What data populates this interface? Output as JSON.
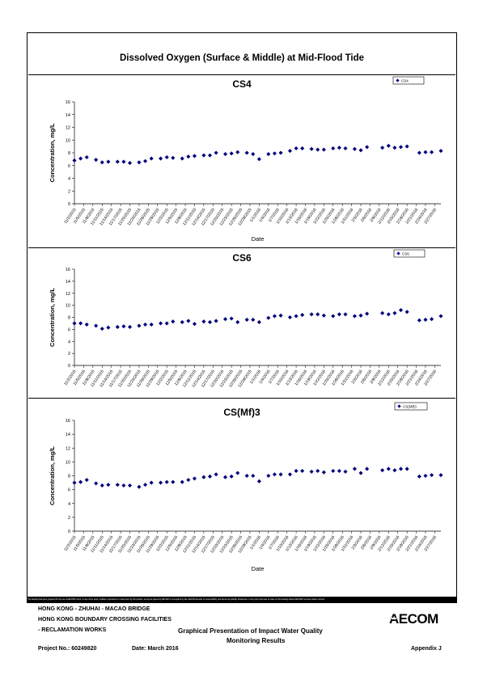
{
  "page": {
    "title": "Dissolved Oxygen (Surface & Middle) at Mid-Flood Tide"
  },
  "chart_data": [
    {
      "type": "scatter",
      "title": "CS4",
      "xlabel": "Date",
      "ylabel": "Concentration, mg/L",
      "legend": "CS4",
      "legend_position": "top-right",
      "ylim": [
        0,
        16
      ],
      "yticks": [
        0,
        2,
        4,
        6,
        8,
        10,
        12,
        14,
        16
      ],
      "xlim": [
        "11/2/2015",
        "2/29/2016"
      ],
      "xticks": [
        "11/2/2015",
        "11/5/2015",
        "11/8/2015",
        "11/11/2015",
        "11/14/2015",
        "11/17/2015",
        "11/20/2015",
        "11/23/2015",
        "11/26/2015",
        "11/29/2015",
        "12/2/2015",
        "12/5/2015",
        "12/8/2015",
        "12/11/2015",
        "12/14/2015",
        "12/17/2015",
        "12/20/2015",
        "12/23/2015",
        "12/26/2015",
        "12/29/2015",
        "1/1/2016",
        "1/4/2016",
        "1/7/2016",
        "1/10/2016",
        "1/13/2016",
        "1/16/2016",
        "1/19/2016",
        "1/22/2016",
        "1/25/2016",
        "1/28/2016",
        "1/31/2016",
        "2/3/2016",
        "2/6/2016",
        "2/9/2016",
        "2/12/2016",
        "2/15/2016",
        "2/18/2016",
        "2/21/2016",
        "2/24/2016",
        "2/27/2016"
      ],
      "marker_color": "#00007a",
      "points": [
        [
          "11/2/2015",
          6.8
        ],
        [
          "11/4/2015",
          7.1
        ],
        [
          "11/6/2015",
          7.3
        ],
        [
          "11/9/2015",
          6.9
        ],
        [
          "11/11/2015",
          6.5
        ],
        [
          "11/13/2015",
          6.6
        ],
        [
          "11/16/2015",
          6.6
        ],
        [
          "11/18/2015",
          6.6
        ],
        [
          "11/20/2015",
          6.4
        ],
        [
          "11/23/2015",
          6.5
        ],
        [
          "11/25/2015",
          6.7
        ],
        [
          "11/27/2015",
          7.1
        ],
        [
          "11/30/2015",
          7.1
        ],
        [
          "12/2/2015",
          7.3
        ],
        [
          "12/4/2015",
          7.2
        ],
        [
          "12/7/2015",
          7.1
        ],
        [
          "12/9/2015",
          7.4
        ],
        [
          "12/11/2015",
          7.5
        ],
        [
          "12/14/2015",
          7.6
        ],
        [
          "12/16/2015",
          7.6
        ],
        [
          "12/18/2015",
          8.0
        ],
        [
          "12/21/2015",
          7.8
        ],
        [
          "12/23/2015",
          7.9
        ],
        [
          "12/25/2015",
          8.1
        ],
        [
          "12/28/2015",
          8.0
        ],
        [
          "12/30/2015",
          7.8
        ],
        [
          "1/1/2016",
          7.0
        ],
        [
          "1/4/2016",
          7.8
        ],
        [
          "1/6/2016",
          7.9
        ],
        [
          "1/8/2016",
          8.0
        ],
        [
          "1/11/2016",
          8.3
        ],
        [
          "1/13/2016",
          8.7
        ],
        [
          "1/15/2016",
          8.7
        ],
        [
          "1/18/2016",
          8.6
        ],
        [
          "1/20/2016",
          8.5
        ],
        [
          "1/22/2016",
          8.5
        ],
        [
          "1/25/2016",
          8.7
        ],
        [
          "1/27/2016",
          8.8
        ],
        [
          "1/29/2016",
          8.7
        ],
        [
          "2/1/2016",
          8.6
        ],
        [
          "2/3/2016",
          8.4
        ],
        [
          "2/5/2016",
          8.9
        ],
        [
          "2/10/2016",
          8.8
        ],
        [
          "2/12/2016",
          9.1
        ],
        [
          "2/14/2016",
          8.8
        ],
        [
          "2/16/2016",
          8.9
        ],
        [
          "2/18/2016",
          9.0
        ],
        [
          "2/22/2016",
          8.0
        ],
        [
          "2/24/2016",
          8.1
        ],
        [
          "2/26/2016",
          8.1
        ],
        [
          "2/29/2016",
          8.3
        ]
      ]
    },
    {
      "type": "scatter",
      "title": "CS6",
      "xlabel": "",
      "ylabel": "Concentration, mg/L",
      "legend": "CS6",
      "legend_position": "top-right",
      "ylim": [
        0,
        16
      ],
      "yticks": [
        0,
        2,
        4,
        6,
        8,
        10,
        12,
        14,
        16
      ],
      "xlim": [
        "11/2/2015",
        "2/29/2016"
      ],
      "xticks": [
        "11/2/2015",
        "11/5/2015",
        "11/8/2015",
        "11/11/2015",
        "11/14/2015",
        "11/17/2015",
        "11/20/2015",
        "11/23/2015",
        "11/26/2015",
        "11/29/2015",
        "12/2/2015",
        "12/5/2015",
        "12/8/2015",
        "12/11/2015",
        "12/14/2015",
        "12/17/2015",
        "12/20/2015",
        "12/23/2015",
        "12/26/2015",
        "12/29/2015",
        "1/1/2016",
        "1/4/2016",
        "1/7/2016",
        "1/10/2016",
        "1/13/2016",
        "1/16/2016",
        "1/19/2016",
        "1/22/2016",
        "1/25/2016",
        "1/28/2016",
        "1/31/2016",
        "2/3/2016",
        "2/6/2016",
        "2/9/2016",
        "2/12/2016",
        "2/15/2016",
        "2/18/2016",
        "2/21/2016",
        "2/24/2016",
        "2/27/2016"
      ],
      "marker_color": "#00007a",
      "points": [
        [
          "11/2/2015",
          7.0
        ],
        [
          "11/4/2015",
          7.0
        ],
        [
          "11/6/2015",
          6.8
        ],
        [
          "11/9/2015",
          6.6
        ],
        [
          "11/11/2015",
          6.1
        ],
        [
          "11/13/2015",
          6.3
        ],
        [
          "11/16/2015",
          6.4
        ],
        [
          "11/18/2015",
          6.5
        ],
        [
          "11/20/2015",
          6.4
        ],
        [
          "11/23/2015",
          6.6
        ],
        [
          "11/25/2015",
          6.8
        ],
        [
          "11/27/2015",
          6.8
        ],
        [
          "11/30/2015",
          7.0
        ],
        [
          "12/2/2015",
          7.0
        ],
        [
          "12/4/2015",
          7.3
        ],
        [
          "12/7/2015",
          7.2
        ],
        [
          "12/9/2015",
          7.4
        ],
        [
          "12/11/2015",
          6.9
        ],
        [
          "12/14/2015",
          7.3
        ],
        [
          "12/16/2015",
          7.2
        ],
        [
          "12/18/2015",
          7.4
        ],
        [
          "12/21/2015",
          7.7
        ],
        [
          "12/23/2015",
          7.8
        ],
        [
          "12/25/2015",
          7.2
        ],
        [
          "12/28/2015",
          7.6
        ],
        [
          "12/30/2015",
          7.6
        ],
        [
          "1/1/2016",
          7.2
        ],
        [
          "1/4/2016",
          7.9
        ],
        [
          "1/6/2016",
          8.2
        ],
        [
          "1/8/2016",
          8.3
        ],
        [
          "1/11/2016",
          8.0
        ],
        [
          "1/13/2016",
          8.2
        ],
        [
          "1/15/2016",
          8.4
        ],
        [
          "1/18/2016",
          8.5
        ],
        [
          "1/20/2016",
          8.5
        ],
        [
          "1/22/2016",
          8.3
        ],
        [
          "1/25/2016",
          8.2
        ],
        [
          "1/27/2016",
          8.5
        ],
        [
          "1/29/2016",
          8.5
        ],
        [
          "2/1/2016",
          8.2
        ],
        [
          "2/3/2016",
          8.3
        ],
        [
          "2/5/2016",
          8.6
        ],
        [
          "2/10/2016",
          8.7
        ],
        [
          "2/12/2016",
          8.5
        ],
        [
          "2/14/2016",
          8.7
        ],
        [
          "2/16/2016",
          9.2
        ],
        [
          "2/18/2016",
          8.9
        ],
        [
          "2/22/2016",
          7.5
        ],
        [
          "2/24/2016",
          7.6
        ],
        [
          "2/26/2016",
          7.7
        ],
        [
          "2/29/2016",
          8.2
        ]
      ]
    },
    {
      "type": "scatter",
      "title": "CS(Mf)3",
      "xlabel": "Date",
      "ylabel": "Concentration, mg/L",
      "legend": "CS(Mf)3",
      "legend_position": "top-right",
      "ylim": [
        0,
        16
      ],
      "yticks": [
        0,
        2,
        4,
        6,
        8,
        10,
        12,
        14,
        16
      ],
      "xlim": [
        "11/2/2015",
        "2/29/2016"
      ],
      "xticks": [
        "11/2/2015",
        "11/5/2015",
        "11/8/2015",
        "11/11/2015",
        "11/14/2015",
        "11/17/2015",
        "11/20/2015",
        "11/23/2015",
        "11/26/2015",
        "11/29/2015",
        "12/2/2015",
        "12/5/2015",
        "12/8/2015",
        "12/11/2015",
        "12/14/2015",
        "12/17/2015",
        "12/20/2015",
        "12/23/2015",
        "12/26/2015",
        "12/29/2015",
        "1/1/2016",
        "1/4/2016",
        "1/7/2016",
        "1/10/2016",
        "1/13/2016",
        "1/16/2016",
        "1/19/2016",
        "1/22/2016",
        "1/25/2016",
        "1/28/2016",
        "1/31/2016",
        "2/3/2016",
        "2/6/2016",
        "2/9/2016",
        "2/12/2016",
        "2/15/2016",
        "2/18/2016",
        "2/21/2016",
        "2/24/2016",
        "2/27/2016"
      ],
      "marker_color": "#00007a",
      "points": [
        [
          "11/2/2015",
          7.0
        ],
        [
          "11/4/2015",
          7.1
        ],
        [
          "11/6/2015",
          7.4
        ],
        [
          "11/9/2015",
          6.9
        ],
        [
          "11/11/2015",
          6.6
        ],
        [
          "11/13/2015",
          6.7
        ],
        [
          "11/16/2015",
          6.7
        ],
        [
          "11/18/2015",
          6.6
        ],
        [
          "11/20/2015",
          6.6
        ],
        [
          "11/23/2015",
          6.4
        ],
        [
          "11/25/2015",
          6.7
        ],
        [
          "11/27/2015",
          7.0
        ],
        [
          "11/30/2015",
          7.0
        ],
        [
          "12/2/2015",
          7.1
        ],
        [
          "12/4/2015",
          7.1
        ],
        [
          "12/7/2015",
          7.1
        ],
        [
          "12/9/2015",
          7.4
        ],
        [
          "12/11/2015",
          7.6
        ],
        [
          "12/14/2015",
          7.8
        ],
        [
          "12/16/2015",
          7.9
        ],
        [
          "12/18/2015",
          8.2
        ],
        [
          "12/21/2015",
          7.8
        ],
        [
          "12/23/2015",
          7.9
        ],
        [
          "12/25/2015",
          8.4
        ],
        [
          "12/28/2015",
          8.0
        ],
        [
          "12/30/2015",
          8.0
        ],
        [
          "1/1/2016",
          7.2
        ],
        [
          "1/4/2016",
          8.0
        ],
        [
          "1/6/2016",
          8.2
        ],
        [
          "1/8/2016",
          8.2
        ],
        [
          "1/11/2016",
          8.2
        ],
        [
          "1/13/2016",
          8.7
        ],
        [
          "1/15/2016",
          8.7
        ],
        [
          "1/18/2016",
          8.6
        ],
        [
          "1/20/2016",
          8.7
        ],
        [
          "1/22/2016",
          8.5
        ],
        [
          "1/25/2016",
          8.7
        ],
        [
          "1/27/2016",
          8.7
        ],
        [
          "1/29/2016",
          8.6
        ],
        [
          "2/1/2016",
          9.0
        ],
        [
          "2/3/2016",
          8.4
        ],
        [
          "2/5/2016",
          9.0
        ],
        [
          "2/10/2016",
          8.8
        ],
        [
          "2/12/2016",
          9.0
        ],
        [
          "2/14/2016",
          8.8
        ],
        [
          "2/16/2016",
          9.0
        ],
        [
          "2/18/2016",
          9.0
        ],
        [
          "2/22/2016",
          7.9
        ],
        [
          "2/24/2016",
          8.0
        ],
        [
          "2/26/2016",
          8.1
        ],
        [
          "2/29/2016",
          8.1
        ]
      ]
    }
  ],
  "disclaimer": "This drawing has been prepared for the use of AECOM's client. It may not be used, modified, reproduced or relied upon by third parties, except as agreed by AECOM or as required by law. AECOM accepts no responsibility, and denies any liability whatsoever, to any party that uses or relies on this drawing without AECOM's express written consent.",
  "footer": {
    "line1": "HONG KONG - ZHUHAI - MACAO BRIDGE",
    "line2": "HONG KONG BOUNDARY CROSSING FACILITIES",
    "line3": "- RECLAMATION WORKS",
    "drawing_title_1": "Graphical Presentation of Impact Water Quality",
    "drawing_title_2": "Monitoring Results",
    "project_no": "Project No.: 60249820",
    "date": "Date: March 2016",
    "appendix": "Appendix J",
    "logo_a": "A",
    "logo_rest": "ECOM"
  }
}
